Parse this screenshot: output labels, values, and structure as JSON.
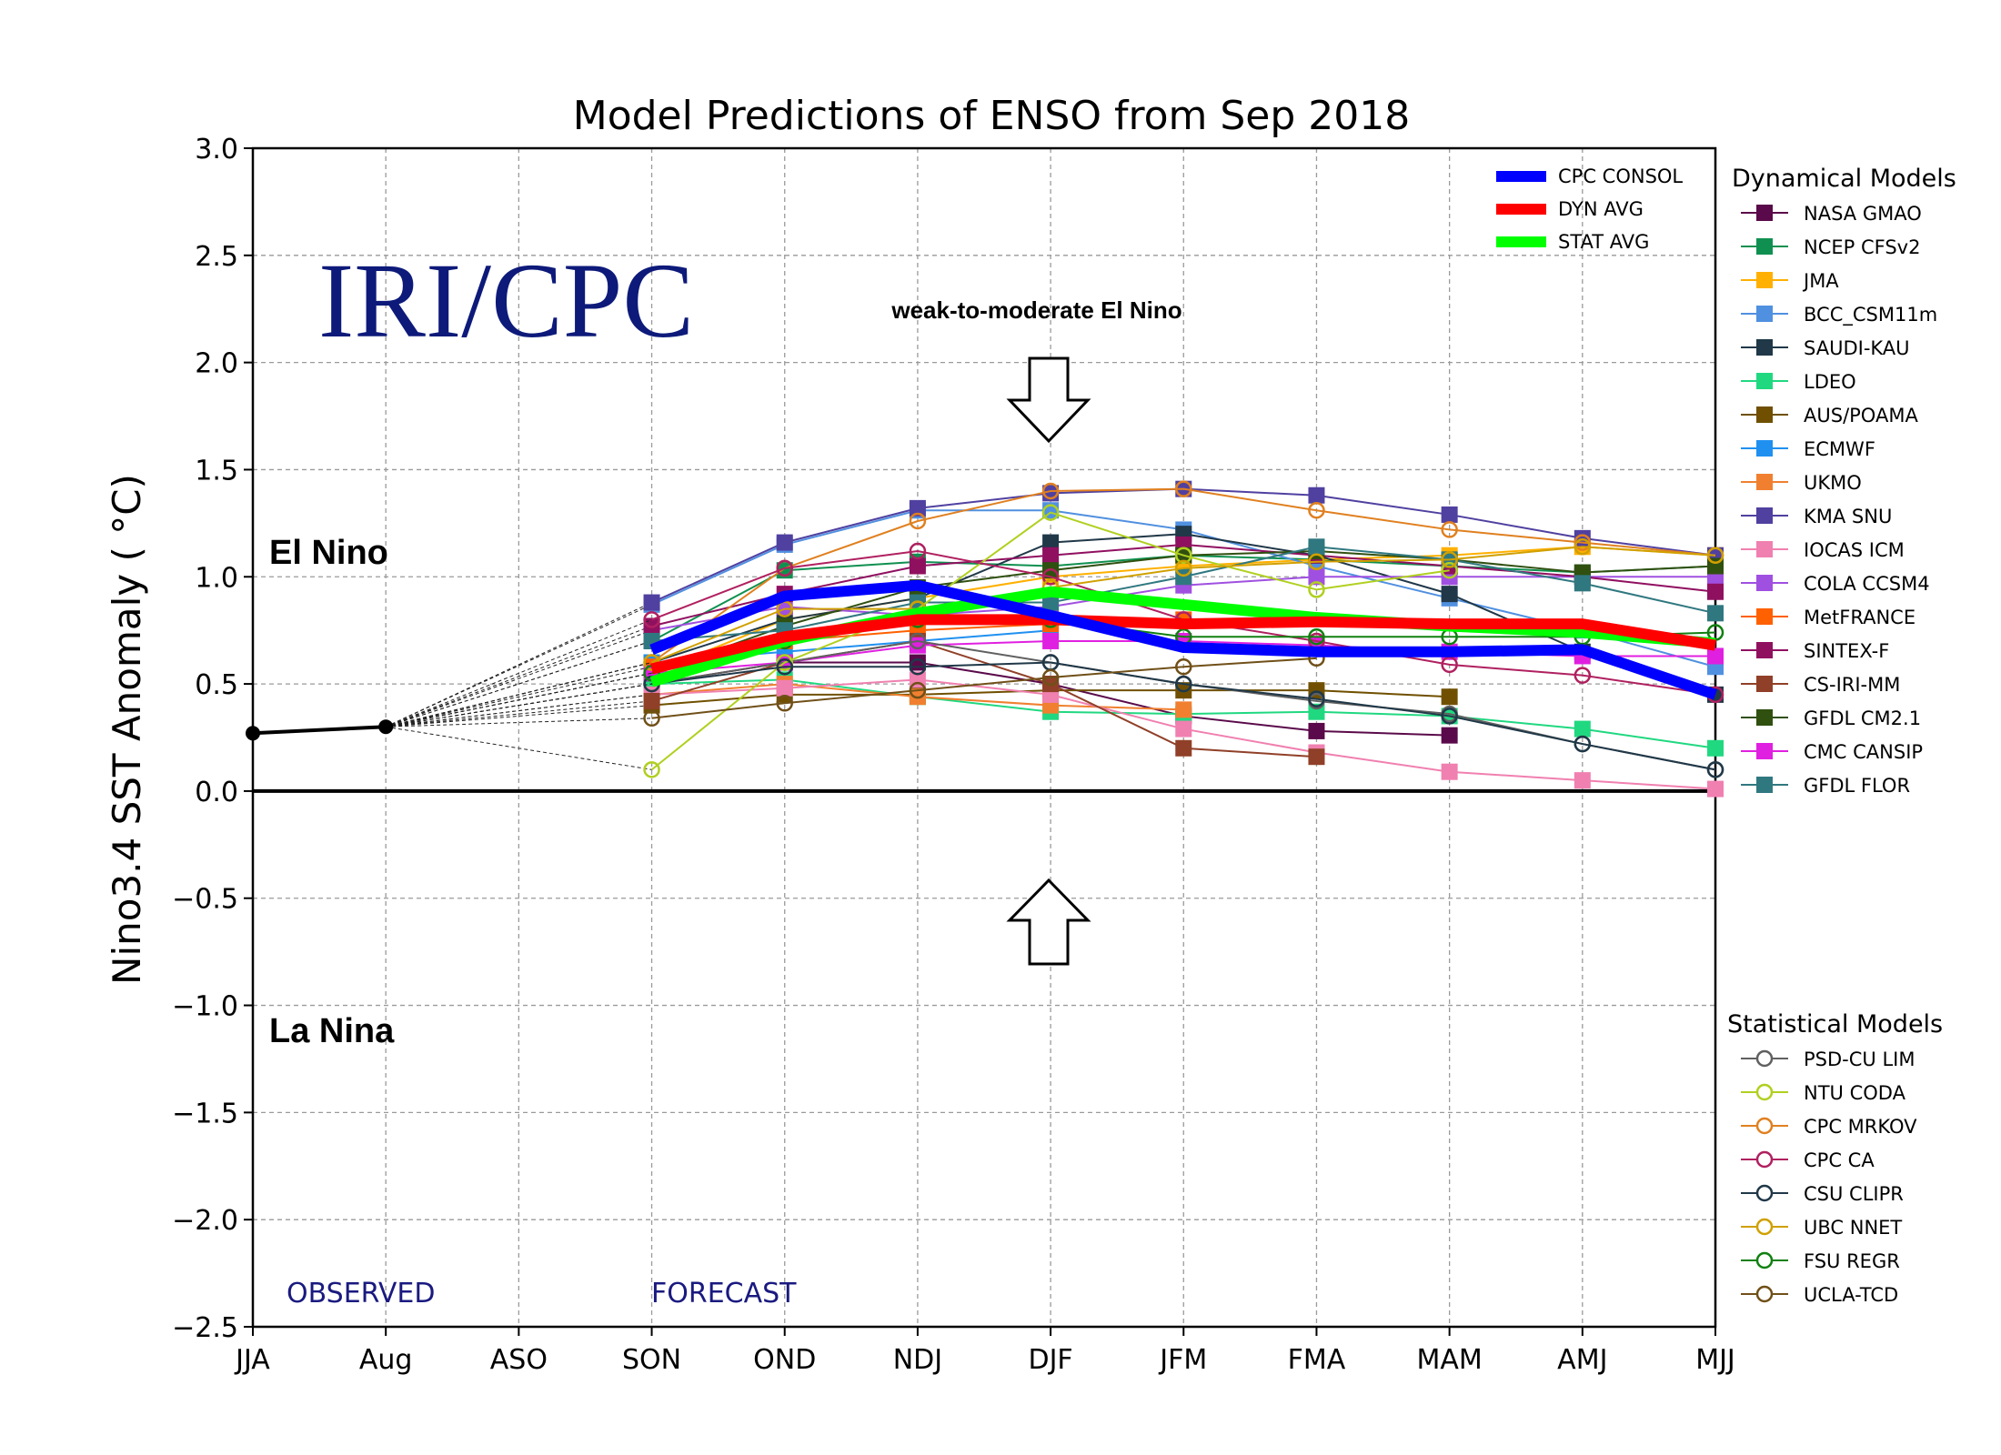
{
  "chart_data": {
    "type": "line",
    "title": "Model Predictions of ENSO from Sep 2018",
    "ylabel": "Nino3.4 SST Anomaly ( °C)",
    "xlabel": "",
    "categories": [
      "JJA",
      "Aug",
      "ASO",
      "SON",
      "OND",
      "NDJ",
      "DJF",
      "JFM",
      "FMA",
      "MAM",
      "AMJ",
      "MJJ"
    ],
    "ylim": [
      -2.5,
      3.0
    ],
    "yticks": [
      "3.0",
      "2.5",
      "2.0",
      "1.5",
      "1.0",
      "0.5",
      "0.0",
      "−0.5",
      "−1.0",
      "−1.5",
      "−2.0",
      "−2.5"
    ],
    "ytick_values": [
      3.0,
      2.5,
      2.0,
      1.5,
      1.0,
      0.5,
      0.0,
      -0.5,
      -1.0,
      -1.5,
      -2.0,
      -2.5
    ],
    "grid": true,
    "observed": {
      "name": "OBSERVED",
      "x_index": [
        0,
        1
      ],
      "values": [
        0.27,
        0.3
      ],
      "color": "#000000"
    },
    "annotations": {
      "watermark": "IRI/CPC",
      "el_nino": "El Nino",
      "la_nina": "La Nina",
      "observed_label": "OBSERVED",
      "forecast_label": "FORECAST",
      "weak_moderate": "weak-to-moderate El Nino"
    },
    "averages": [
      {
        "name": "CPC CONSOL",
        "color": "#0000ff",
        "values": [
          null,
          null,
          null,
          0.66,
          0.91,
          0.96,
          0.82,
          0.67,
          0.65,
          0.65,
          0.66,
          0.45
        ]
      },
      {
        "name": "DYN AVG",
        "color": "#ff0000",
        "values": [
          null,
          null,
          null,
          0.57,
          0.72,
          0.8,
          0.8,
          0.78,
          0.79,
          0.78,
          0.78,
          0.68
        ]
      },
      {
        "name": "STAT AVG",
        "color": "#00ff00",
        "values": [
          null,
          null,
          null,
          0.51,
          0.7,
          0.83,
          0.93,
          0.87,
          0.81,
          0.77,
          0.74,
          0.69
        ]
      }
    ],
    "dynamical_heading": "Dynamical Models",
    "dynamical_models": [
      {
        "name": "NASA GMAO",
        "color": "#5a0a4a",
        "values": [
          null,
          null,
          null,
          0.5,
          0.6,
          0.6,
          0.5,
          0.35,
          0.28,
          0.26,
          null,
          null
        ]
      },
      {
        "name": "NCEP CFSv2",
        "color": "#109050",
        "values": [
          null,
          null,
          null,
          0.7,
          1.03,
          1.07,
          1.05,
          1.1,
          1.08,
          1.05,
          1.02,
          1.05
        ]
      },
      {
        "name": "JMA",
        "color": "#ffb000",
        "values": [
          null,
          null,
          null,
          0.55,
          0.8,
          0.9,
          1.0,
          1.05,
          1.08,
          1.1,
          1.14,
          1.1
        ]
      },
      {
        "name": "BCC_CSM11m",
        "color": "#5090e0",
        "values": [
          null,
          null,
          null,
          0.87,
          1.15,
          1.31,
          1.31,
          1.22,
          1.05,
          0.9,
          0.75,
          0.58
        ]
      },
      {
        "name": "SAUDI-KAU",
        "color": "#203848",
        "values": [
          null,
          null,
          null,
          0.6,
          0.8,
          0.9,
          1.16,
          1.2,
          1.1,
          0.92,
          0.65,
          0.45
        ]
      },
      {
        "name": "LDEO",
        "color": "#20d880",
        "values": [
          null,
          null,
          null,
          0.5,
          0.52,
          0.44,
          0.37,
          0.36,
          0.37,
          0.35,
          0.29,
          0.2
        ]
      },
      {
        "name": "AUS/POAMA",
        "color": "#705000",
        "values": [
          null,
          null,
          null,
          0.4,
          0.45,
          0.45,
          0.47,
          0.47,
          0.47,
          0.44,
          null,
          null
        ]
      },
      {
        "name": "ECMWF",
        "color": "#2090f0",
        "values": [
          null,
          null,
          null,
          0.6,
          0.65,
          0.7,
          0.75,
          null,
          null,
          null,
          null,
          null
        ]
      },
      {
        "name": "UKMO",
        "color": "#f08030",
        "values": [
          null,
          null,
          null,
          0.45,
          0.5,
          0.44,
          0.4,
          0.38,
          null,
          null,
          null,
          null
        ]
      },
      {
        "name": "KMA SNU",
        "color": "#5040a0",
        "values": [
          null,
          null,
          null,
          0.88,
          1.16,
          1.32,
          1.39,
          1.41,
          1.38,
          1.29,
          1.18,
          1.1
        ]
      },
      {
        "name": "IOCAS ICM",
        "color": "#f080b0",
        "values": [
          null,
          null,
          null,
          0.45,
          0.48,
          0.52,
          0.45,
          0.29,
          0.18,
          0.09,
          0.05,
          0.01
        ]
      },
      {
        "name": "COLA CCSM4",
        "color": "#a050e0",
        "values": [
          null,
          null,
          null,
          0.75,
          0.86,
          0.82,
          0.86,
          0.96,
          1.0,
          1.0,
          1.0,
          1.0
        ]
      },
      {
        "name": "MetFRANCE",
        "color": "#ff6000",
        "values": [
          null,
          null,
          null,
          0.58,
          0.7,
          0.75,
          0.78,
          0.8,
          null,
          null,
          null,
          null
        ]
      },
      {
        "name": "SINTEX-F",
        "color": "#901060",
        "values": [
          null,
          null,
          null,
          0.77,
          0.92,
          1.05,
          1.1,
          1.15,
          1.1,
          1.05,
          1.0,
          0.93
        ]
      },
      {
        "name": "CS-IRI-MM",
        "color": "#904028",
        "values": [
          null,
          null,
          null,
          0.42,
          0.6,
          0.7,
          0.5,
          0.2,
          0.16,
          null,
          null,
          null
        ]
      },
      {
        "name": "GFDL CM2.1",
        "color": "#305010",
        "values": [
          null,
          null,
          null,
          0.55,
          0.77,
          0.95,
          1.03,
          1.1,
          1.12,
          1.08,
          1.02,
          1.05
        ]
      },
      {
        "name": "CMC CANSIP",
        "color": "#e020e0",
        "values": [
          null,
          null,
          null,
          0.55,
          0.6,
          0.68,
          0.7,
          0.7,
          0.68,
          0.65,
          0.63,
          0.63
        ]
      },
      {
        "name": "GFDL FLOR",
        "color": "#307880",
        "values": [
          null,
          null,
          null,
          0.7,
          0.75,
          0.88,
          0.88,
          1.0,
          1.14,
          1.08,
          0.97,
          0.83
        ]
      }
    ],
    "statistical_heading": "Statistical Models",
    "statistical_models": [
      {
        "name": "PSD-CU LIM",
        "color": "#606060",
        "values": [
          null,
          null,
          null,
          0.5,
          0.6,
          0.7,
          0.6,
          0.5,
          0.42,
          0.36,
          0.22,
          0.1
        ]
      },
      {
        "name": "NTU CODA",
        "color": "#b0d020",
        "values": [
          null,
          null,
          null,
          0.1,
          0.6,
          0.85,
          1.3,
          1.1,
          0.94,
          1.03,
          null,
          null
        ]
      },
      {
        "name": "CPC MRKOV",
        "color": "#e08020",
        "values": [
          null,
          null,
          null,
          0.6,
          1.04,
          1.26,
          1.4,
          1.41,
          1.31,
          1.22,
          1.16,
          1.1
        ]
      },
      {
        "name": "CPC CA",
        "color": "#b02060",
        "values": [
          null,
          null,
          null,
          0.8,
          1.04,
          1.12,
          1.0,
          0.8,
          0.7,
          0.59,
          0.54,
          0.45
        ]
      },
      {
        "name": "CSU CLIPR",
        "color": "#203848",
        "values": [
          null,
          null,
          null,
          0.5,
          0.58,
          0.58,
          0.6,
          0.5,
          0.43,
          0.35,
          0.22,
          0.1
        ]
      },
      {
        "name": "UBC NNET",
        "color": "#d0a000",
        "values": [
          null,
          null,
          null,
          0.6,
          0.85,
          0.85,
          0.95,
          1.04,
          1.07,
          1.08,
          1.14,
          1.1
        ]
      },
      {
        "name": "FSU REGR",
        "color": "#108010",
        "values": [
          null,
          null,
          null,
          0.55,
          0.7,
          0.8,
          0.8,
          0.72,
          0.72,
          0.72,
          0.72,
          0.74
        ]
      },
      {
        "name": "UCLA-TCD",
        "color": "#705018",
        "values": [
          null,
          null,
          null,
          0.34,
          0.41,
          0.47,
          0.53,
          0.58,
          0.62,
          null,
          null,
          null
        ]
      }
    ]
  }
}
